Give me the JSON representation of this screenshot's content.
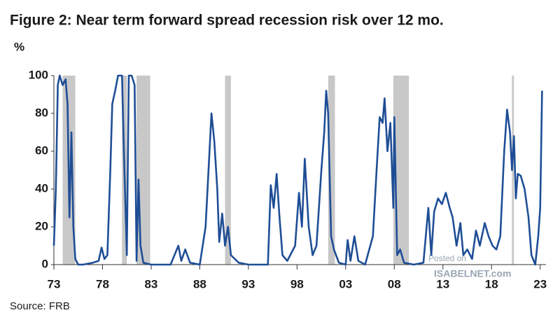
{
  "chart_data": {
    "type": "line",
    "title": "Figure 2: Near term forward spread recession risk over 12 mo.",
    "y_unit": "%",
    "source": "Source: FRB",
    "watermark": [
      "Posted on",
      "ISABELNET.com"
    ],
    "color": "#1f4e96",
    "recession_color": "#c8c8c8",
    "xlim": [
      1973,
      2023.6
    ],
    "ylim": [
      0,
      100
    ],
    "yticks": [
      0,
      20,
      40,
      60,
      80,
      100
    ],
    "xticks": [
      {
        "value": 1973,
        "label": "73"
      },
      {
        "value": 1978,
        "label": "78"
      },
      {
        "value": 1983,
        "label": "83"
      },
      {
        "value": 1988,
        "label": "88"
      },
      {
        "value": 1993,
        "label": "93"
      },
      {
        "value": 1998,
        "label": "98"
      },
      {
        "value": 2003,
        "label": "03"
      },
      {
        "value": 2008,
        "label": "08"
      },
      {
        "value": 2013,
        "label": "13"
      },
      {
        "value": 2018,
        "label": "18"
      },
      {
        "value": 2023,
        "label": "23"
      }
    ],
    "recessions": [
      [
        1973.9,
        1975.2
      ],
      [
        1980.0,
        1980.5
      ],
      [
        1981.5,
        1982.9
      ],
      [
        1990.6,
        1991.2
      ],
      [
        2001.2,
        2001.9
      ],
      [
        2007.9,
        2009.5
      ],
      [
        2020.1,
        2020.3
      ]
    ],
    "x": [
      1973.0,
      1973.2,
      1973.4,
      1973.6,
      1973.9,
      1974.2,
      1974.4,
      1974.6,
      1974.8,
      1975.0,
      1975.2,
      1975.5,
      1976.0,
      1977.0,
      1977.6,
      1977.9,
      1978.2,
      1978.5,
      1978.8,
      1979.0,
      1979.3,
      1979.6,
      1980.0,
      1980.2,
      1980.5,
      1980.7,
      1981.0,
      1981.3,
      1981.5,
      1981.7,
      1981.9,
      1982.2,
      1983.0,
      1985.0,
      1985.8,
      1986.1,
      1986.5,
      1987.0,
      1988.0,
      1988.6,
      1989.0,
      1989.2,
      1989.5,
      1989.8,
      1990.0,
      1990.3,
      1990.6,
      1990.9,
      1991.2,
      1992.0,
      1993.0,
      1995.0,
      1995.3,
      1995.6,
      1995.9,
      1996.2,
      1996.5,
      1997.0,
      1997.8,
      1998.2,
      1998.5,
      1998.8,
      1999.2,
      1999.6,
      2000.0,
      2000.5,
      2000.8,
      2001.0,
      2001.2,
      2001.5,
      2001.8,
      2002.3,
      2003.0,
      2003.2,
      2003.5,
      2003.9,
      2004.3,
      2005.0,
      2005.8,
      2006.2,
      2006.5,
      2006.8,
      2007.0,
      2007.3,
      2007.6,
      2007.9,
      2008.0,
      2008.3,
      2008.6,
      2009.0,
      2010.0,
      2011.0,
      2011.5,
      2011.8,
      2012.1,
      2012.5,
      2012.9,
      2013.3,
      2013.7,
      2014.0,
      2014.4,
      2014.8,
      2015.1,
      2015.5,
      2016.0,
      2016.4,
      2016.8,
      2017.3,
      2017.7,
      2018.1,
      2018.5,
      2018.9,
      2019.3,
      2019.6,
      2019.9,
      2020.1,
      2020.3,
      2020.5,
      2020.7,
      2021.0,
      2021.4,
      2021.8,
      2022.1,
      2022.5,
      2022.8,
      2023.0,
      2023.2
    ],
    "values": [
      10,
      40,
      95,
      100,
      95,
      98,
      85,
      25,
      70,
      20,
      3,
      0,
      0,
      1,
      2,
      9,
      3,
      5,
      50,
      85,
      92,
      100,
      100,
      60,
      5,
      100,
      100,
      95,
      2,
      45,
      10,
      1,
      0,
      0,
      10,
      2,
      8,
      1,
      0,
      20,
      60,
      80,
      65,
      40,
      12,
      27,
      10,
      20,
      5,
      1,
      0,
      0,
      42,
      30,
      48,
      25,
      5,
      2,
      10,
      38,
      20,
      56,
      20,
      5,
      10,
      50,
      70,
      92,
      80,
      15,
      8,
      1,
      0,
      13,
      2,
      15,
      2,
      0,
      15,
      52,
      78,
      75,
      88,
      60,
      75,
      30,
      78,
      5,
      8,
      1,
      0,
      1,
      30,
      5,
      28,
      35,
      32,
      38,
      30,
      25,
      10,
      22,
      5,
      8,
      3,
      18,
      10,
      22,
      15,
      10,
      8,
      15,
      60,
      82,
      70,
      50,
      68,
      35,
      48,
      47,
      40,
      25,
      5,
      0,
      15,
      30,
      92
    ]
  }
}
